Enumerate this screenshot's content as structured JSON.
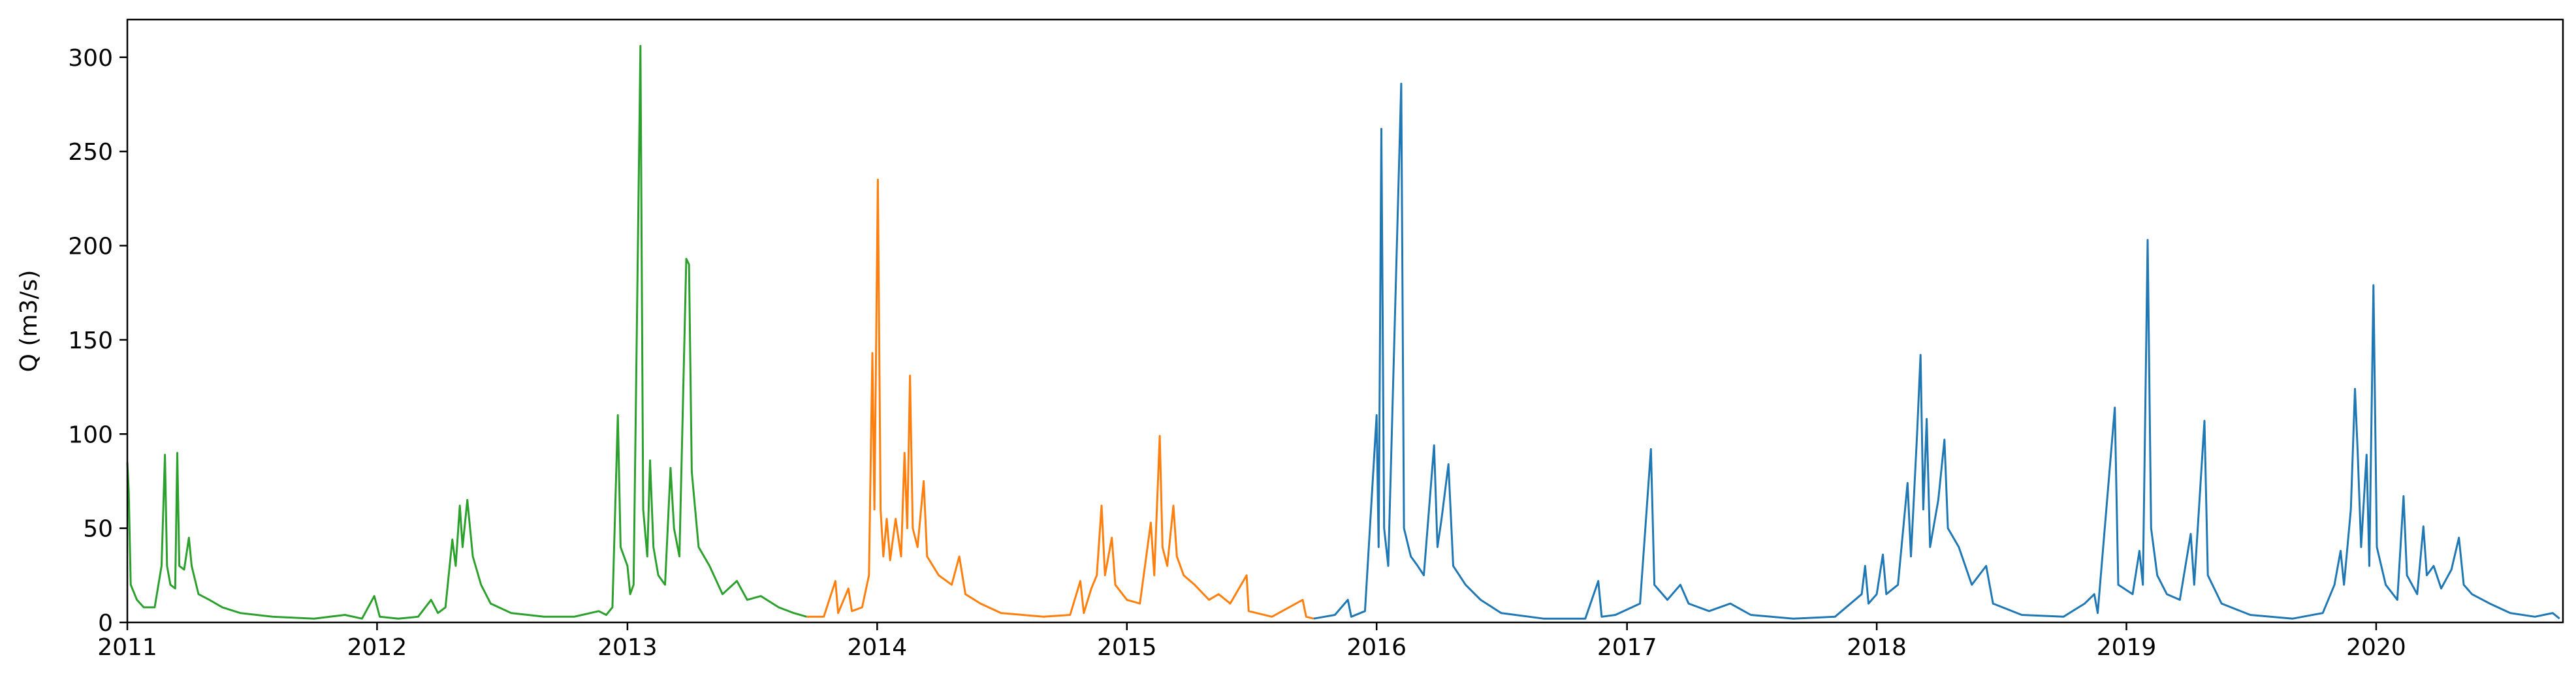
{
  "chart_data": {
    "type": "line",
    "title": "",
    "xlabel": "",
    "ylabel": "Q (m3/s)",
    "x_axis": "date",
    "xlim": [
      "2011-01-01",
      "2020-09-30"
    ],
    "ylim": [
      0,
      320
    ],
    "xticks": [
      "2011",
      "2012",
      "2013",
      "2014",
      "2015",
      "2016",
      "2017",
      "2018",
      "2019",
      "2020"
    ],
    "yticks": [
      0,
      50,
      100,
      150,
      200,
      250,
      300
    ],
    "grid": false,
    "legend": "none",
    "series": [
      {
        "color": "#2ca02c",
        "points": [
          [
            "2011-01-01",
            85
          ],
          [
            "2011-01-03",
            70
          ],
          [
            "2011-01-06",
            20
          ],
          [
            "2011-01-15",
            12
          ],
          [
            "2011-01-25",
            8
          ],
          [
            "2011-02-10",
            8
          ],
          [
            "2011-02-20",
            30
          ],
          [
            "2011-02-25",
            89
          ],
          [
            "2011-02-28",
            30
          ],
          [
            "2011-03-05",
            20
          ],
          [
            "2011-03-12",
            18
          ],
          [
            "2011-03-15",
            90
          ],
          [
            "2011-03-18",
            30
          ],
          [
            "2011-03-25",
            28
          ],
          [
            "2011-04-01",
            45
          ],
          [
            "2011-04-05",
            30
          ],
          [
            "2011-04-15",
            15
          ],
          [
            "2011-05-01",
            12
          ],
          [
            "2011-05-20",
            8
          ],
          [
            "2011-06-15",
            5
          ],
          [
            "2011-08-01",
            3
          ],
          [
            "2011-10-01",
            2
          ],
          [
            "2011-11-15",
            4
          ],
          [
            "2011-12-10",
            2
          ],
          [
            "2011-12-28",
            14
          ],
          [
            "2012-01-05",
            3
          ],
          [
            "2012-02-01",
            2
          ],
          [
            "2012-03-01",
            3
          ],
          [
            "2012-03-20",
            12
          ],
          [
            "2012-03-30",
            5
          ],
          [
            "2012-04-10",
            8
          ],
          [
            "2012-04-20",
            44
          ],
          [
            "2012-04-25",
            30
          ],
          [
            "2012-05-01",
            62
          ],
          [
            "2012-05-05",
            40
          ],
          [
            "2012-05-12",
            65
          ],
          [
            "2012-05-20",
            35
          ],
          [
            "2012-06-01",
            20
          ],
          [
            "2012-06-15",
            10
          ],
          [
            "2012-07-15",
            5
          ],
          [
            "2012-09-01",
            3
          ],
          [
            "2012-10-15",
            3
          ],
          [
            "2012-11-20",
            6
          ],
          [
            "2012-12-01",
            4
          ],
          [
            "2012-12-10",
            8
          ],
          [
            "2012-12-18",
            110
          ],
          [
            "2012-12-22",
            40
          ],
          [
            "2013-01-01",
            30
          ],
          [
            "2013-01-05",
            15
          ],
          [
            "2013-01-10",
            20
          ],
          [
            "2013-01-20",
            306
          ],
          [
            "2013-01-24",
            60
          ],
          [
            "2013-01-30",
            35
          ],
          [
            "2013-02-03",
            86
          ],
          [
            "2013-02-08",
            40
          ],
          [
            "2013-02-15",
            25
          ],
          [
            "2013-02-25",
            20
          ],
          [
            "2013-03-05",
            82
          ],
          [
            "2013-03-10",
            50
          ],
          [
            "2013-03-18",
            35
          ],
          [
            "2013-03-28",
            193
          ],
          [
            "2013-04-01",
            190
          ],
          [
            "2013-04-05",
            80
          ],
          [
            "2013-04-15",
            40
          ],
          [
            "2013-05-01",
            30
          ],
          [
            "2013-05-20",
            15
          ],
          [
            "2013-06-10",
            22
          ],
          [
            "2013-06-25",
            12
          ],
          [
            "2013-07-15",
            14
          ],
          [
            "2013-08-10",
            8
          ],
          [
            "2013-09-01",
            5
          ],
          [
            "2013-09-20",
            3
          ]
        ]
      },
      {
        "color": "#ff7f0e",
        "points": [
          [
            "2013-09-20",
            3
          ],
          [
            "2013-10-15",
            3
          ],
          [
            "2013-11-01",
            22
          ],
          [
            "2013-11-05",
            5
          ],
          [
            "2013-11-20",
            18
          ],
          [
            "2013-11-25",
            6
          ],
          [
            "2013-12-10",
            8
          ],
          [
            "2013-12-20",
            25
          ],
          [
            "2013-12-25",
            143
          ],
          [
            "2013-12-28",
            60
          ],
          [
            "2014-01-02",
            235
          ],
          [
            "2014-01-06",
            60
          ],
          [
            "2014-01-10",
            35
          ],
          [
            "2014-01-15",
            55
          ],
          [
            "2014-01-20",
            33
          ],
          [
            "2014-01-28",
            55
          ],
          [
            "2014-02-05",
            35
          ],
          [
            "2014-02-10",
            90
          ],
          [
            "2014-02-14",
            50
          ],
          [
            "2014-02-18",
            131
          ],
          [
            "2014-02-22",
            50
          ],
          [
            "2014-03-01",
            40
          ],
          [
            "2014-03-10",
            75
          ],
          [
            "2014-03-15",
            35
          ],
          [
            "2014-04-01",
            25
          ],
          [
            "2014-04-20",
            20
          ],
          [
            "2014-05-01",
            35
          ],
          [
            "2014-05-10",
            15
          ],
          [
            "2014-06-01",
            10
          ],
          [
            "2014-07-01",
            5
          ],
          [
            "2014-09-01",
            3
          ],
          [
            "2014-10-10",
            4
          ],
          [
            "2014-10-25",
            22
          ],
          [
            "2014-10-30",
            5
          ],
          [
            "2014-11-10",
            18
          ],
          [
            "2014-11-18",
            25
          ],
          [
            "2014-11-25",
            62
          ],
          [
            "2014-11-30",
            25
          ],
          [
            "2014-12-10",
            45
          ],
          [
            "2014-12-15",
            20
          ],
          [
            "2015-01-01",
            12
          ],
          [
            "2015-01-20",
            10
          ],
          [
            "2015-02-05",
            53
          ],
          [
            "2015-02-10",
            25
          ],
          [
            "2015-02-18",
            99
          ],
          [
            "2015-02-22",
            40
          ],
          [
            "2015-03-01",
            30
          ],
          [
            "2015-03-10",
            62
          ],
          [
            "2015-03-15",
            35
          ],
          [
            "2015-03-25",
            25
          ],
          [
            "2015-04-10",
            20
          ],
          [
            "2015-05-01",
            12
          ],
          [
            "2015-05-15",
            15
          ],
          [
            "2015-06-01",
            10
          ],
          [
            "2015-06-25",
            25
          ],
          [
            "2015-06-28",
            6
          ],
          [
            "2015-08-01",
            3
          ],
          [
            "2015-09-15",
            12
          ],
          [
            "2015-09-20",
            3
          ],
          [
            "2015-10-01",
            2
          ]
        ]
      },
      {
        "color": "#1f77b4",
        "points": [
          [
            "2015-10-01",
            2
          ],
          [
            "2015-11-01",
            4
          ],
          [
            "2015-11-20",
            12
          ],
          [
            "2015-11-25",
            3
          ],
          [
            "2015-12-15",
            6
          ],
          [
            "2016-01-01",
            110
          ],
          [
            "2016-01-04",
            40
          ],
          [
            "2016-01-08",
            262
          ],
          [
            "2016-01-12",
            50
          ],
          [
            "2016-01-18",
            30
          ],
          [
            "2016-02-06",
            286
          ],
          [
            "2016-02-10",
            50
          ],
          [
            "2016-02-20",
            35
          ],
          [
            "2016-03-01",
            30
          ],
          [
            "2016-03-10",
            25
          ],
          [
            "2016-03-25",
            94
          ],
          [
            "2016-03-30",
            40
          ],
          [
            "2016-04-05",
            55
          ],
          [
            "2016-04-15",
            84
          ],
          [
            "2016-04-22",
            30
          ],
          [
            "2016-05-10",
            20
          ],
          [
            "2016-06-01",
            12
          ],
          [
            "2016-07-01",
            5
          ],
          [
            "2016-09-01",
            2
          ],
          [
            "2016-11-01",
            2
          ],
          [
            "2016-11-20",
            22
          ],
          [
            "2016-11-25",
            3
          ],
          [
            "2016-12-15",
            4
          ],
          [
            "2017-01-20",
            10
          ],
          [
            "2017-02-05",
            92
          ],
          [
            "2017-02-10",
            20
          ],
          [
            "2017-03-01",
            12
          ],
          [
            "2017-03-20",
            20
          ],
          [
            "2017-04-01",
            10
          ],
          [
            "2017-05-01",
            6
          ],
          [
            "2017-06-01",
            10
          ],
          [
            "2017-07-01",
            4
          ],
          [
            "2017-09-01",
            2
          ],
          [
            "2017-11-01",
            3
          ],
          [
            "2017-12-10",
            15
          ],
          [
            "2017-12-15",
            30
          ],
          [
            "2017-12-20",
            10
          ],
          [
            "2018-01-01",
            15
          ],
          [
            "2018-01-10",
            36
          ],
          [
            "2018-01-15",
            15
          ],
          [
            "2018-02-01",
            20
          ],
          [
            "2018-02-15",
            74
          ],
          [
            "2018-02-20",
            35
          ],
          [
            "2018-03-01",
            100
          ],
          [
            "2018-03-06",
            142
          ],
          [
            "2018-03-10",
            60
          ],
          [
            "2018-03-15",
            108
          ],
          [
            "2018-03-20",
            40
          ],
          [
            "2018-04-01",
            65
          ],
          [
            "2018-04-10",
            97
          ],
          [
            "2018-04-15",
            50
          ],
          [
            "2018-05-01",
            40
          ],
          [
            "2018-05-20",
            20
          ],
          [
            "2018-06-10",
            30
          ],
          [
            "2018-06-20",
            10
          ],
          [
            "2018-08-01",
            4
          ],
          [
            "2018-10-01",
            3
          ],
          [
            "2018-11-01",
            10
          ],
          [
            "2018-11-15",
            15
          ],
          [
            "2018-11-20",
            5
          ],
          [
            "2018-12-15",
            114
          ],
          [
            "2018-12-20",
            20
          ],
          [
            "2019-01-10",
            15
          ],
          [
            "2019-01-20",
            38
          ],
          [
            "2019-01-25",
            20
          ],
          [
            "2019-02-01",
            203
          ],
          [
            "2019-02-06",
            50
          ],
          [
            "2019-02-15",
            25
          ],
          [
            "2019-03-01",
            15
          ],
          [
            "2019-03-20",
            12
          ],
          [
            "2019-04-05",
            47
          ],
          [
            "2019-04-10",
            20
          ],
          [
            "2019-04-25",
            107
          ],
          [
            "2019-04-30",
            25
          ],
          [
            "2019-05-20",
            10
          ],
          [
            "2019-07-01",
            4
          ],
          [
            "2019-09-01",
            2
          ],
          [
            "2019-10-15",
            5
          ],
          [
            "2019-11-01",
            20
          ],
          [
            "2019-11-10",
            38
          ],
          [
            "2019-11-15",
            20
          ],
          [
            "2019-11-25",
            60
          ],
          [
            "2019-12-01",
            124
          ],
          [
            "2019-12-05",
            90
          ],
          [
            "2019-12-10",
            40
          ],
          [
            "2019-12-18",
            89
          ],
          [
            "2019-12-22",
            30
          ],
          [
            "2019-12-28",
            179
          ],
          [
            "2020-01-02",
            40
          ],
          [
            "2020-01-15",
            20
          ],
          [
            "2020-02-01",
            12
          ],
          [
            "2020-02-10",
            67
          ],
          [
            "2020-02-15",
            25
          ],
          [
            "2020-03-01",
            15
          ],
          [
            "2020-03-10",
            51
          ],
          [
            "2020-03-15",
            25
          ],
          [
            "2020-03-25",
            30
          ],
          [
            "2020-04-05",
            18
          ],
          [
            "2020-04-20",
            28
          ],
          [
            "2020-05-01",
            45
          ],
          [
            "2020-05-08",
            20
          ],
          [
            "2020-05-20",
            15
          ],
          [
            "2020-06-15",
            10
          ],
          [
            "2020-07-15",
            5
          ],
          [
            "2020-08-20",
            3
          ],
          [
            "2020-09-15",
            5
          ],
          [
            "2020-09-25",
            2
          ]
        ]
      }
    ]
  }
}
